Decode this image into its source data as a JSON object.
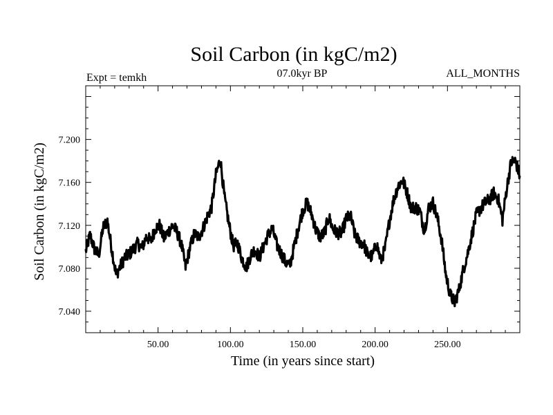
{
  "chart_data": {
    "type": "line",
    "title": "Soil Carbon (in kgC/m2)",
    "subtitle_left": "Expt = temkh",
    "subtitle_center": "07.0kyr BP",
    "subtitle_right": "ALL_MONTHS",
    "xlabel": "Time (in years since start)",
    "ylabel": "Soil Carbon (in kgC/m2)",
    "xlim": [
      0,
      300
    ],
    "ylim": [
      7.02,
      7.25
    ],
    "xticks": [
      50,
      100,
      150,
      200,
      250
    ],
    "xtick_labels": [
      "50.00",
      "100.00",
      "150.00",
      "200.00",
      "250.00"
    ],
    "yticks": [
      7.04,
      7.08,
      7.12,
      7.16,
      7.2
    ],
    "ytick_labels": [
      "7.040",
      "7.080",
      "7.120",
      "7.160",
      "7.200"
    ],
    "grid": false,
    "series": [
      {
        "color": "#000000",
        "x": [
          0,
          3,
          6,
          9,
          12,
          15,
          18,
          21,
          24,
          27,
          30,
          33,
          36,
          39,
          42,
          45,
          48,
          51,
          54,
          57,
          60,
          63,
          66,
          69,
          72,
          75,
          78,
          81,
          84,
          87,
          90,
          93,
          96,
          99,
          102,
          105,
          108,
          111,
          114,
          117,
          120,
          123,
          126,
          129,
          132,
          135,
          138,
          141,
          144,
          147,
          150,
          153,
          156,
          159,
          162,
          165,
          168,
          171,
          174,
          177,
          180,
          183,
          186,
          189,
          192,
          195,
          198,
          201,
          204,
          207,
          210,
          213,
          216,
          219,
          222,
          225,
          228,
          231,
          234,
          237,
          240,
          243,
          246,
          249,
          252,
          255,
          258,
          261,
          264,
          267,
          270,
          273,
          276,
          279,
          282,
          285,
          288,
          291,
          294,
          297,
          300
        ],
        "y": [
          7.096,
          7.111,
          7.098,
          7.092,
          7.118,
          7.124,
          7.098,
          7.074,
          7.082,
          7.09,
          7.093,
          7.098,
          7.103,
          7.099,
          7.11,
          7.105,
          7.117,
          7.12,
          7.108,
          7.114,
          7.12,
          7.114,
          7.103,
          7.081,
          7.099,
          7.112,
          7.109,
          7.117,
          7.128,
          7.137,
          7.167,
          7.182,
          7.145,
          7.121,
          7.101,
          7.103,
          7.089,
          7.081,
          7.092,
          7.098,
          7.09,
          7.101,
          7.111,
          7.117,
          7.102,
          7.094,
          7.086,
          7.082,
          7.1,
          7.118,
          7.134,
          7.141,
          7.131,
          7.116,
          7.109,
          7.113,
          7.128,
          7.116,
          7.113,
          7.113,
          7.126,
          7.129,
          7.111,
          7.105,
          7.103,
          7.092,
          7.091,
          7.103,
          7.087,
          7.099,
          7.125,
          7.145,
          7.157,
          7.162,
          7.151,
          7.136,
          7.137,
          7.133,
          7.115,
          7.136,
          7.141,
          7.127,
          7.106,
          7.073,
          7.055,
          7.048,
          7.06,
          7.079,
          7.094,
          7.112,
          7.13,
          7.136,
          7.141,
          7.144,
          7.15,
          7.145,
          7.125,
          7.155,
          7.179,
          7.18,
          7.166
        ]
      }
    ]
  }
}
